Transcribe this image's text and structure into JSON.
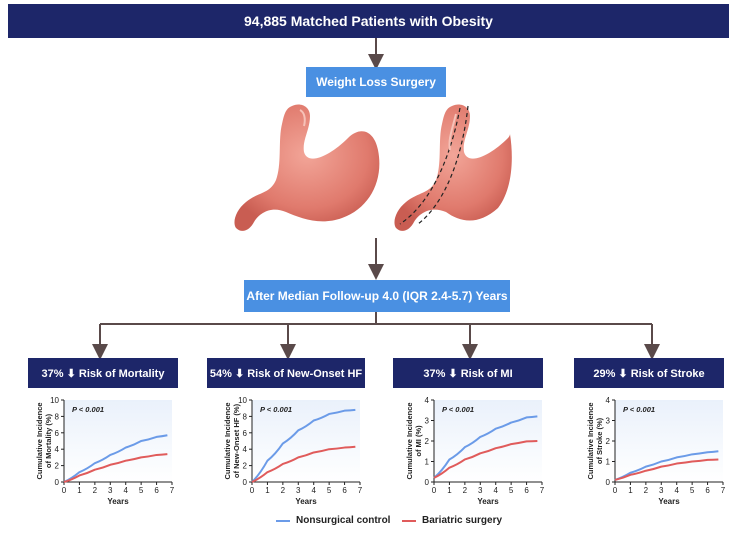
{
  "header": {
    "title": "94,885 Matched Patients with Obesity"
  },
  "intervention": {
    "label": "Weight Loss Surgery"
  },
  "followup": {
    "label": "After Median Follow-up 4.0 (IQR 2.4-5.7) Years"
  },
  "colors": {
    "navy": "#1d2669",
    "blue": "#4a90e2",
    "control": "#6b9be8",
    "surgery": "#e05b5b",
    "stomach": "#e58378",
    "arrow": "#5a4a4a"
  },
  "outcomes": [
    {
      "title": "37% ⬇ Risk of Mortality"
    },
    {
      "title": "54% ⬇ Risk of New-Onset HF"
    },
    {
      "title": "37% ⬇ Risk of MI"
    },
    {
      "title": "29% ⬇ Risk of Stroke"
    }
  ],
  "chart_data": [
    {
      "type": "line",
      "ylabel": "Cumulative Incidence of Mortality (%)",
      "xlabel": "Years",
      "ylim": [
        0,
        10
      ],
      "yticks": [
        "0",
        "2",
        "4",
        "6",
        "8",
        "10"
      ],
      "xticks": [
        "0",
        "1",
        "2",
        "3",
        "4",
        "5",
        "6",
        "7"
      ],
      "annotation": "P < 0.001",
      "series": [
        {
          "name": "Nonsurgical control",
          "x": [
            0,
            1,
            2,
            3,
            4,
            5,
            6,
            6.7
          ],
          "values": [
            0,
            1.2,
            2.3,
            3.3,
            4.2,
            5.0,
            5.5,
            5.7
          ]
        },
        {
          "name": "Bariatric surgery",
          "x": [
            0,
            1,
            2,
            3,
            4,
            5,
            6,
            6.7
          ],
          "values": [
            0,
            0.8,
            1.5,
            2.1,
            2.6,
            3.0,
            3.3,
            3.4
          ]
        }
      ]
    },
    {
      "type": "line",
      "ylabel": "Cumulative Incidence of New-Onset HF (%)",
      "xlabel": "Years",
      "ylim": [
        0,
        10
      ],
      "yticks": [
        "0",
        "2",
        "4",
        "6",
        "8",
        "10"
      ],
      "xticks": [
        "0",
        "1",
        "2",
        "3",
        "4",
        "5",
        "6",
        "7"
      ],
      "annotation": "P < 0.001",
      "series": [
        {
          "name": "Nonsurgical control",
          "x": [
            0,
            1,
            2,
            3,
            4,
            5,
            6,
            6.7
          ],
          "values": [
            0,
            2.6,
            4.7,
            6.3,
            7.5,
            8.3,
            8.7,
            8.8
          ]
        },
        {
          "name": "Bariatric surgery",
          "x": [
            0,
            1,
            2,
            3,
            4,
            5,
            6,
            6.7
          ],
          "values": [
            0,
            1.2,
            2.2,
            3.0,
            3.6,
            4.0,
            4.2,
            4.3
          ]
        }
      ]
    },
    {
      "type": "line",
      "ylabel": "Cumulative Incidence of MI (%)",
      "xlabel": "Years",
      "ylim": [
        0,
        4
      ],
      "yticks": [
        "0",
        "1",
        "2",
        "3",
        "4"
      ],
      "xticks": [
        "0",
        "1",
        "2",
        "3",
        "4",
        "5",
        "6",
        "7"
      ],
      "annotation": "P < 0.001",
      "series": [
        {
          "name": "Nonsurgical control",
          "x": [
            0,
            1,
            2,
            3,
            4,
            5,
            6,
            6.7
          ],
          "values": [
            0.2,
            1.1,
            1.7,
            2.2,
            2.6,
            2.9,
            3.15,
            3.2
          ]
        },
        {
          "name": "Bariatric surgery",
          "x": [
            0,
            1,
            2,
            3,
            4,
            5,
            6,
            6.7
          ],
          "values": [
            0.2,
            0.7,
            1.1,
            1.4,
            1.65,
            1.85,
            1.98,
            2.0
          ]
        }
      ]
    },
    {
      "type": "line",
      "ylabel": "Cumulative Incidence of Stroke (%)",
      "xlabel": "Years",
      "ylim": [
        0,
        4
      ],
      "yticks": [
        "0",
        "1",
        "2",
        "3",
        "4"
      ],
      "xticks": [
        "0",
        "1",
        "2",
        "3",
        "4",
        "5",
        "6",
        "7"
      ],
      "annotation": "P < 0.001",
      "series": [
        {
          "name": "Nonsurgical control",
          "x": [
            0,
            1,
            2,
            3,
            4,
            5,
            6,
            6.7
          ],
          "values": [
            0.1,
            0.45,
            0.75,
            1.0,
            1.2,
            1.35,
            1.45,
            1.5
          ]
        },
        {
          "name": "Bariatric surgery",
          "x": [
            0,
            1,
            2,
            3,
            4,
            5,
            6,
            6.7
          ],
          "values": [
            0.1,
            0.35,
            0.55,
            0.75,
            0.9,
            1.0,
            1.08,
            1.1
          ]
        }
      ]
    }
  ],
  "legend": [
    {
      "label": "Nonsurgical control",
      "color": "#6b9be8"
    },
    {
      "label": "Bariatric surgery",
      "color": "#e05b5b"
    }
  ]
}
